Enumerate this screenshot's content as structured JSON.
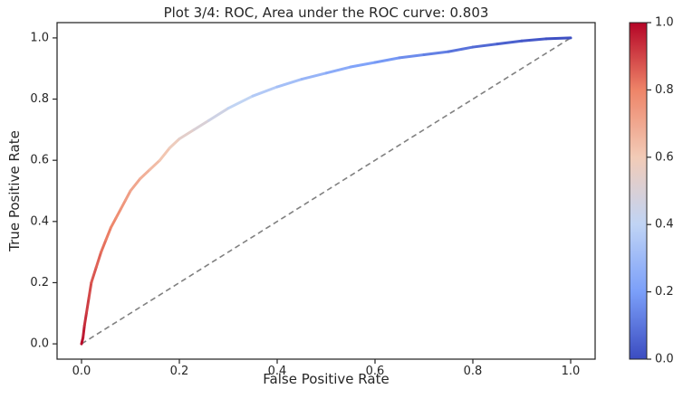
{
  "chart_data": {
    "type": "line",
    "title": "Plot 3/4: ROC, Area under the ROC curve: 0.803",
    "xlabel": "False Positive Rate",
    "ylabel": "True Positive Rate",
    "xlim": [
      -0.05,
      1.05
    ],
    "ylim": [
      -0.05,
      1.05
    ],
    "xticks": [
      "0.0",
      "0.2",
      "0.4",
      "0.6",
      "0.8",
      "1.0"
    ],
    "yticks": [
      "0.0",
      "0.2",
      "0.4",
      "0.6",
      "0.8",
      "1.0"
    ],
    "grid": false,
    "colormap": "coolwarm",
    "colorbar": {
      "range": [
        0.0,
        1.0
      ],
      "ticks": [
        "0.0",
        "0.2",
        "0.4",
        "0.6",
        "0.8",
        "1.0"
      ],
      "colors": [
        "#3b4cc0",
        "#7b9ff9",
        "#c0d4f5",
        "#f2cbb7",
        "#ee8468",
        "#b40426"
      ]
    },
    "series": [
      {
        "x": [
          0.0,
          0.003,
          0.006,
          0.01,
          0.015,
          0.02,
          0.03,
          0.04,
          0.05,
          0.06,
          0.07,
          0.08,
          0.09,
          0.1,
          0.12,
          0.14,
          0.16,
          0.18,
          0.2,
          0.23,
          0.26,
          0.3,
          0.35,
          0.4,
          0.45,
          0.5,
          0.55,
          0.6,
          0.65,
          0.7,
          0.75,
          0.8,
          0.85,
          0.9,
          0.95,
          1.0
        ],
        "y": [
          0.0,
          0.02,
          0.06,
          0.1,
          0.15,
          0.2,
          0.25,
          0.3,
          0.34,
          0.38,
          0.41,
          0.44,
          0.47,
          0.5,
          0.54,
          0.57,
          0.6,
          0.64,
          0.67,
          0.7,
          0.73,
          0.77,
          0.81,
          0.84,
          0.865,
          0.885,
          0.905,
          0.92,
          0.935,
          0.945,
          0.955,
          0.97,
          0.98,
          0.99,
          0.997,
          1.0
        ],
        "threshold": [
          1.0,
          0.98,
          0.95,
          0.92,
          0.9,
          0.88,
          0.86,
          0.84,
          0.82,
          0.8,
          0.78,
          0.76,
          0.74,
          0.72,
          0.69,
          0.66,
          0.63,
          0.6,
          0.56,
          0.52,
          0.48,
          0.43,
          0.38,
          0.34,
          0.3,
          0.26,
          0.23,
          0.2,
          0.17,
          0.14,
          0.11,
          0.08,
          0.06,
          0.04,
          0.02,
          0.0
        ]
      },
      {
        "x": [
          0.0,
          1.0
        ],
        "y": [
          0.0,
          1.0
        ],
        "style": "dashed",
        "color": "#808080"
      }
    ]
  }
}
